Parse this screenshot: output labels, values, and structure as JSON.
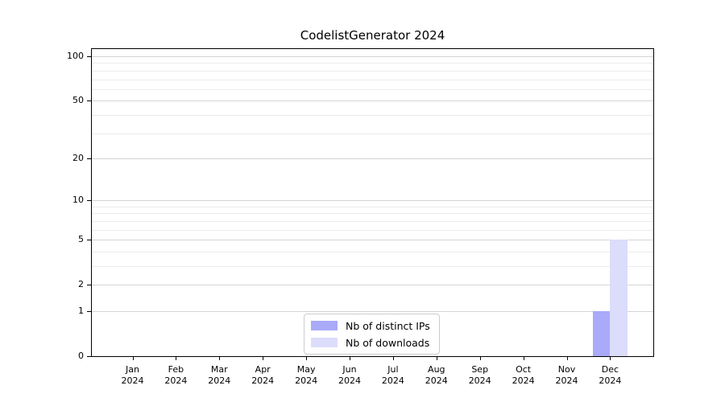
{
  "chart_data": {
    "type": "bar",
    "title": "CodelistGenerator 2024",
    "categories": [
      "Jan 2024",
      "Feb 2024",
      "Mar 2024",
      "Apr 2024",
      "May 2024",
      "Jun 2024",
      "Jul 2024",
      "Aug 2024",
      "Sep 2024",
      "Oct 2024",
      "Nov 2024",
      "Dec 2024"
    ],
    "series": [
      {
        "name": "Nb of distinct IPs",
        "color": "#a9aaf8",
        "values": [
          0,
          0,
          0,
          0,
          0,
          0,
          0,
          0,
          0,
          0,
          0,
          1
        ]
      },
      {
        "name": "Nb of downloads",
        "color": "#dcdcfb",
        "values": [
          0,
          0,
          0,
          0,
          0,
          0,
          0,
          0,
          0,
          0,
          0,
          5
        ]
      }
    ],
    "xlabel": "",
    "ylabel": "",
    "y_axis": {
      "scale": "log1p",
      "ticks": [
        0,
        1,
        2,
        5,
        10,
        20,
        50,
        100
      ],
      "minor_gridlines": [
        3,
        4,
        6,
        7,
        8,
        9,
        30,
        40,
        60,
        70,
        80,
        90
      ],
      "max": 112
    },
    "grid": true,
    "legend_position": "inside-bottom-center",
    "colors": {
      "major_grid": "#d4d4d4",
      "minor_grid": "#ebebeb",
      "spine": "#000000",
      "background": "#ffffff",
      "text": "#000000"
    }
  }
}
